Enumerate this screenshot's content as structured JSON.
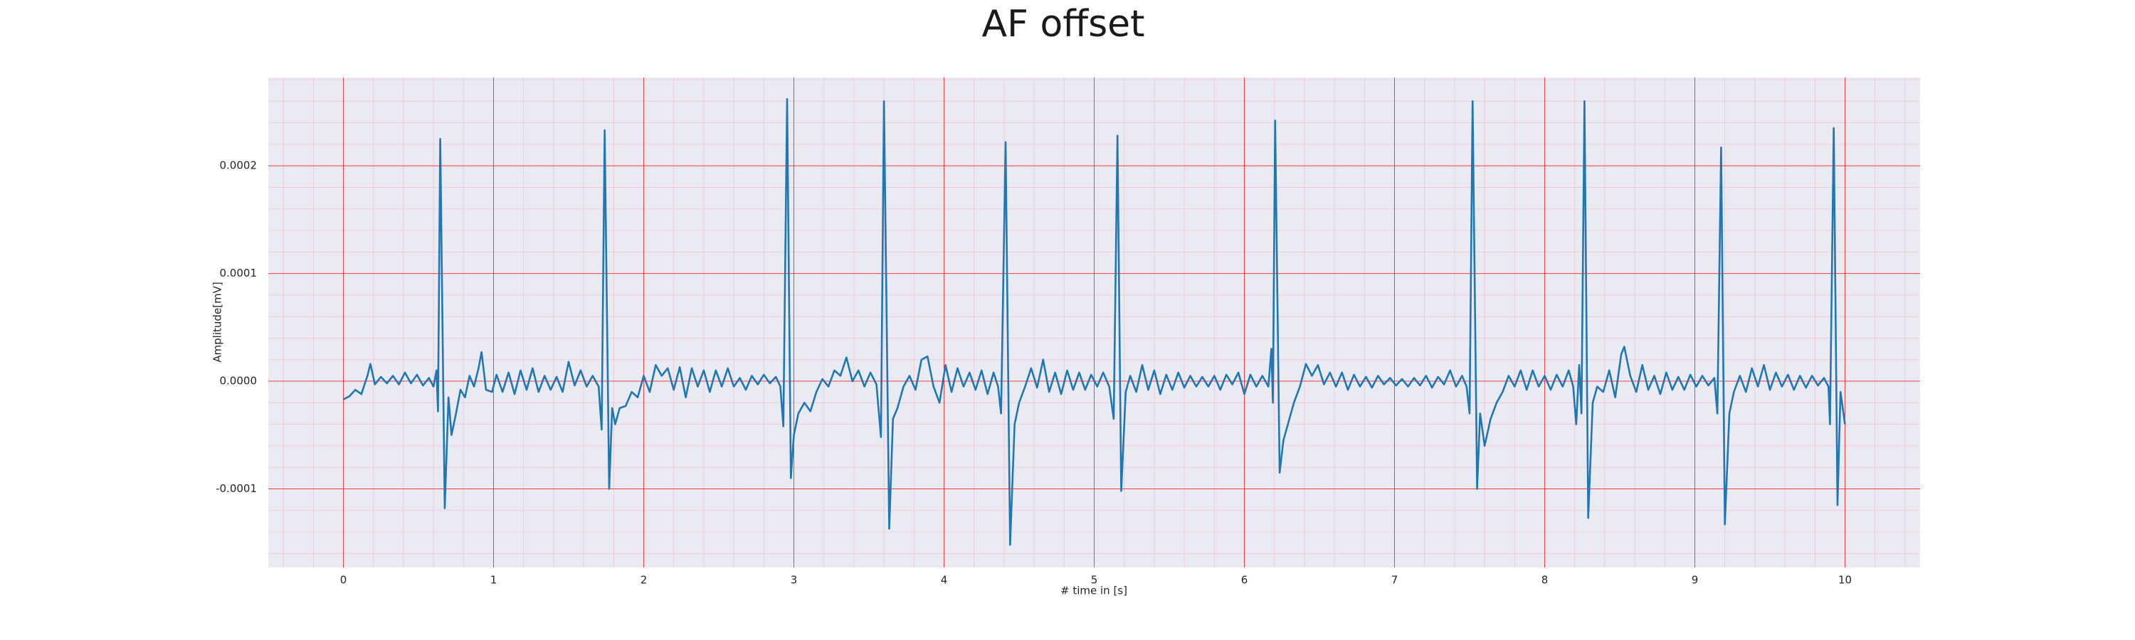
{
  "chart_data": {
    "type": "line",
    "title": "AF offset",
    "xlabel": "# time in [s]",
    "ylabel": "Amplitude[mV]",
    "color": "#1f77b4",
    "xlim": [
      -0.5,
      10.5
    ],
    "ylim": [
      -0.000173,
      0.000282
    ],
    "xticks": [
      0,
      1,
      2,
      3,
      4,
      5,
      6,
      7,
      8,
      9,
      10
    ],
    "yticks": [
      -0.0001,
      {
        "value": 0,
        "label": "0.0000"
      },
      0.0001,
      0.0002
    ],
    "xticks_minor": [
      -0.4,
      -0.2,
      0,
      0.2,
      0.4,
      0.6,
      0.8,
      1,
      1.2,
      1.4,
      1.6,
      1.8,
      2,
      2.2,
      2.4,
      2.6,
      2.8,
      3,
      3.2,
      3.4,
      3.6,
      3.8,
      4,
      4.2,
      4.4,
      4.6,
      4.8,
      5,
      5.2,
      5.4,
      5.6,
      5.8,
      6,
      6.2,
      6.4,
      6.6,
      6.8,
      7,
      7.2,
      7.4,
      7.6,
      7.8,
      8,
      8.2,
      8.4,
      8.6,
      8.8,
      9,
      9.2,
      9.4,
      9.6,
      9.8,
      10,
      10.2,
      10.4
    ],
    "yticks_minor": [
      -0.00016,
      -0.00014,
      -0.00012,
      -0.0001,
      -8e-05,
      -6e-05,
      -4e-05,
      -2e-05,
      0,
      2e-05,
      4e-05,
      6e-05,
      8e-05,
      0.0001,
      0.00012,
      0.00014,
      0.00016,
      0.00018,
      0.0002,
      0.00022,
      0.00024,
      0.00026,
      0.00028
    ],
    "grid": true,
    "minor_grid": true,
    "x": [
      0,
      0.04,
      0.08,
      0.12,
      0.16,
      0.18,
      0.21,
      0.25,
      0.29,
      0.33,
      0.37,
      0.41,
      0.45,
      0.49,
      0.53,
      0.57,
      0.6,
      0.62,
      0.63,
      0.645,
      0.675,
      0.7,
      0.72,
      0.75,
      0.78,
      0.81,
      0.84,
      0.87,
      0.9,
      0.92,
      0.95,
      0.99,
      1.02,
      1.06,
      1.1,
      1.14,
      1.18,
      1.22,
      1.26,
      1.3,
      1.34,
      1.38,
      1.42,
      1.46,
      1.5,
      1.54,
      1.58,
      1.62,
      1.66,
      1.7,
      1.72,
      1.74,
      1.77,
      1.79,
      1.81,
      1.84,
      1.88,
      1.92,
      1.96,
      2,
      2.04,
      2.08,
      2.12,
      2.16,
      2.2,
      2.24,
      2.28,
      2.32,
      2.36,
      2.4,
      2.44,
      2.48,
      2.52,
      2.56,
      2.6,
      2.64,
      2.68,
      2.72,
      2.76,
      2.8,
      2.84,
      2.88,
      2.91,
      2.93,
      2.955,
      2.98,
      3,
      3.03,
      3.07,
      3.11,
      3.15,
      3.19,
      3.23,
      3.27,
      3.31,
      3.35,
      3.39,
      3.43,
      3.47,
      3.51,
      3.55,
      3.58,
      3.6,
      3.635,
      3.66,
      3.69,
      3.73,
      3.77,
      3.81,
      3.85,
      3.89,
      3.93,
      3.97,
      4.01,
      4.05,
      4.09,
      4.13,
      4.17,
      4.21,
      4.25,
      4.29,
      4.33,
      4.36,
      4.38,
      4.41,
      4.44,
      4.47,
      4.5,
      4.54,
      4.58,
      4.62,
      4.66,
      4.7,
      4.74,
      4.78,
      4.82,
      4.86,
      4.9,
      4.94,
      4.98,
      5.02,
      5.06,
      5.1,
      5.13,
      5.155,
      5.18,
      5.21,
      5.24,
      5.28,
      5.32,
      5.36,
      5.4,
      5.44,
      5.48,
      5.52,
      5.56,
      5.6,
      5.64,
      5.68,
      5.72,
      5.76,
      5.8,
      5.84,
      5.88,
      5.92,
      5.96,
      6,
      6.04,
      6.08,
      6.12,
      6.16,
      6.18,
      6.19,
      6.205,
      6.235,
      6.26,
      6.29,
      6.33,
      6.37,
      6.41,
      6.45,
      6.49,
      6.53,
      6.57,
      6.61,
      6.65,
      6.69,
      6.73,
      6.77,
      6.81,
      6.85,
      6.89,
      6.93,
      6.97,
      7.01,
      7.05,
      7.09,
      7.13,
      7.17,
      7.21,
      7.25,
      7.29,
      7.33,
      7.37,
      7.41,
      7.45,
      7.48,
      7.5,
      7.52,
      7.55,
      7.57,
      7.6,
      7.64,
      7.68,
      7.72,
      7.76,
      7.8,
      7.84,
      7.88,
      7.92,
      7.96,
      8,
      8.04,
      8.08,
      8.12,
      8.16,
      8.19,
      8.21,
      8.23,
      8.245,
      8.265,
      8.29,
      8.32,
      8.35,
      8.39,
      8.43,
      8.47,
      8.51,
      8.53,
      8.57,
      8.61,
      8.65,
      8.69,
      8.73,
      8.77,
      8.81,
      8.85,
      8.89,
      8.93,
      8.97,
      9.01,
      9.05,
      9.09,
      9.13,
      9.15,
      9.175,
      9.2,
      9.23,
      9.26,
      9.3,
      9.34,
      9.38,
      9.42,
      9.46,
      9.5,
      9.54,
      9.58,
      9.62,
      9.66,
      9.7,
      9.74,
      9.78,
      9.82,
      9.86,
      9.89,
      9.9,
      9.925,
      9.95,
      9.97,
      10
    ],
    "values": [
      -1.7e-05,
      -1.4e-05,
      -8e-06,
      -1.2e-05,
      5e-06,
      1.6e-05,
      -3e-06,
      4e-06,
      -2e-06,
      5e-06,
      -3e-06,
      8e-06,
      -2e-06,
      6e-06,
      -4e-06,
      3e-06,
      -5e-06,
      1e-05,
      -2.8e-05,
      0.000225,
      -0.000118,
      -1.5e-05,
      -5e-05,
      -3e-05,
      -8e-06,
      -1.5e-05,
      5e-06,
      -5e-06,
      1.2e-05,
      2.7e-05,
      -8e-06,
      -1e-05,
      6e-06,
      -1e-05,
      8e-06,
      -1.2e-05,
      1e-05,
      -8e-06,
      1.2e-05,
      -1e-05,
      5e-06,
      -8e-06,
      4e-06,
      -1e-05,
      1.8e-05,
      -4e-06,
      1e-05,
      -5e-06,
      5e-06,
      -5e-06,
      -4.5e-05,
      0.000233,
      -0.0001,
      -2.5e-05,
      -4e-05,
      -2.5e-05,
      -2.3e-05,
      -1e-05,
      -1.5e-05,
      5e-06,
      -1e-05,
      1.5e-05,
      5e-06,
      1.2e-05,
      -8e-06,
      1.3e-05,
      -1.5e-05,
      1.2e-05,
      -5e-06,
      1e-05,
      -1e-05,
      1e-05,
      -5e-06,
      1.2e-05,
      -5e-06,
      3e-06,
      -8e-06,
      5e-06,
      -3e-06,
      6e-06,
      -2e-06,
      4e-06,
      -5e-06,
      -4.2e-05,
      0.000262,
      -9e-05,
      -5e-05,
      -3e-05,
      -2e-05,
      -2.8e-05,
      -1e-05,
      2e-06,
      -5e-06,
      1e-05,
      5e-06,
      2.2e-05,
      0,
      1e-05,
      -5e-06,
      8e-06,
      -3e-06,
      -5.2e-05,
      0.00026,
      -0.000137,
      -3.5e-05,
      -2.5e-05,
      -5e-06,
      5e-06,
      -8e-06,
      2e-05,
      2.3e-05,
      -5e-06,
      -2e-05,
      1.5e-05,
      -1e-05,
      1.2e-05,
      -5e-06,
      8e-06,
      -8e-06,
      1e-05,
      -1.2e-05,
      8e-06,
      -5e-06,
      -3e-05,
      0.000222,
      -0.000152,
      -4e-05,
      -2e-05,
      -5e-06,
      1.2e-05,
      -6e-06,
      2e-05,
      -1e-05,
      8e-06,
      -1.2e-05,
      1e-05,
      -8e-06,
      8e-06,
      -8e-06,
      6e-06,
      -5e-06,
      8e-06,
      -5e-06,
      -3.5e-05,
      0.000228,
      -0.000102,
      -1e-05,
      5e-06,
      -1e-05,
      1.5e-05,
      -8e-06,
      1e-05,
      -1.2e-05,
      6e-06,
      -8e-06,
      8e-06,
      -6e-06,
      5e-06,
      -5e-06,
      4e-06,
      -5e-06,
      5e-06,
      -8e-06,
      6e-06,
      -3e-06,
      8e-06,
      -1.2e-05,
      6e-06,
      -5e-06,
      5e-06,
      -5e-06,
      3e-05,
      -2e-05,
      0.000242,
      -8.5e-05,
      -5.5e-05,
      -4e-05,
      -2e-05,
      -5e-06,
      1.6e-05,
      5e-06,
      1.5e-05,
      -3e-06,
      8e-06,
      -5e-06,
      8e-06,
      -8e-06,
      6e-06,
      -5e-06,
      4e-06,
      -6e-06,
      5e-06,
      -3e-06,
      3e-06,
      -4e-06,
      2e-06,
      -5e-06,
      3e-06,
      -4e-06,
      5e-06,
      -6e-06,
      4e-06,
      -3e-06,
      1e-05,
      -5e-06,
      5e-06,
      -5e-06,
      -3e-05,
      0.00026,
      -0.0001,
      -3e-05,
      -6e-05,
      -3.5e-05,
      -2e-05,
      -1e-05,
      5e-06,
      -5e-06,
      1e-05,
      -8e-06,
      1e-05,
      -5e-06,
      5e-06,
      -8e-06,
      6e-06,
      -5e-06,
      1e-05,
      -5e-06,
      -4e-05,
      1.5e-05,
      -3e-05,
      0.00026,
      -0.000127,
      -2e-05,
      -5e-06,
      -1e-05,
      1e-05,
      -1.5e-05,
      2.5e-05,
      3.2e-05,
      5e-06,
      -1e-05,
      1.5e-05,
      -8e-06,
      5e-06,
      -1.2e-05,
      8e-06,
      -8e-06,
      4e-06,
      -8e-06,
      6e-06,
      -5e-06,
      5e-06,
      -4e-06,
      3e-06,
      -3e-05,
      0.000217,
      -0.000133,
      -3e-05,
      -1e-05,
      5e-06,
      -1e-05,
      1.2e-05,
      -5e-06,
      1.5e-05,
      -8e-06,
      8e-06,
      -5e-06,
      6e-06,
      -8e-06,
      5e-06,
      -6e-06,
      5e-06,
      -4e-06,
      3e-06,
      -5e-06,
      -4e-05,
      0.000235,
      -0.000115,
      -1e-05,
      -4e-05
    ]
  }
}
